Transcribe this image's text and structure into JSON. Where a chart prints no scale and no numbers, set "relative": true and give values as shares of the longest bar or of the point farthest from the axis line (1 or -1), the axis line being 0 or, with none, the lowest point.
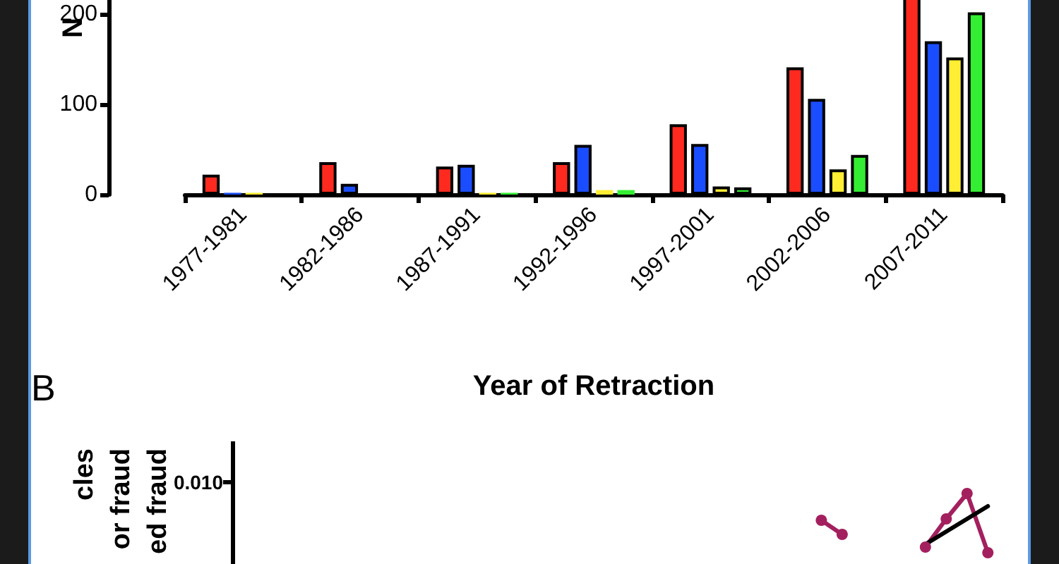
{
  "chart_data": [
    {
      "type": "bar",
      "ylabel": "N",
      "xlabel": "Year of Retraction",
      "categories": [
        "1977-1981",
        "1982-1986",
        "1987-1991",
        "1992-1996",
        "1997-2001",
        "2002-2006",
        "2007-2011"
      ],
      "ylim": [
        0,
        250
      ],
      "yticks": [
        0,
        100,
        200
      ],
      "grid": false,
      "series": [
        {
          "color": "#ff2a1f",
          "values": [
            22,
            36,
            31,
            36,
            78,
            141,
            220
          ]
        },
        {
          "color": "#1a4dff",
          "values": [
            2,
            12,
            33,
            55,
            56,
            106,
            170
          ]
        },
        {
          "color": "#ffee33",
          "values": [
            2,
            0,
            2,
            5,
            9,
            28,
            152
          ]
        },
        {
          "color": "#33ee33",
          "values": [
            0,
            0,
            2,
            5,
            8,
            44,
            202
          ]
        }
      ]
    },
    {
      "type": "line",
      "title": "B",
      "ylabel": "cles\nor fraud\ned fraud",
      "relative": true,
      "marker": "circle",
      "annotations": [
        "0.010"
      ],
      "categories": [
        null,
        null,
        null,
        null,
        null,
        null,
        null,
        null,
        null,
        null,
        null,
        null,
        null,
        null,
        null,
        null,
        null,
        null,
        null,
        null,
        null,
        null,
        null,
        null,
        null,
        null,
        null,
        null,
        null,
        null,
        null,
        null,
        null,
        null,
        null
      ],
      "series": [
        {
          "color": "#a3205e",
          "values": [
            null,
            null,
            null,
            null,
            null,
            null,
            null,
            null,
            null,
            null,
            null,
            null,
            null,
            null,
            null,
            null,
            null,
            null,
            null,
            null,
            null,
            null,
            null,
            null,
            null,
            null,
            0.62,
            0.42,
            null,
            null,
            null,
            0.24,
            0.64,
            1,
            0.16
          ]
        },
        {
          "color": "#000000",
          "marker": "none",
          "values": [
            null,
            null,
            null,
            null,
            null,
            null,
            null,
            null,
            null,
            null,
            null,
            null,
            null,
            null,
            null,
            null,
            null,
            null,
            null,
            null,
            null,
            null,
            null,
            null,
            null,
            null,
            null,
            null,
            null,
            null,
            null,
            0.28,
            0.46,
            0.64,
            0.82
          ]
        }
      ]
    }
  ]
}
